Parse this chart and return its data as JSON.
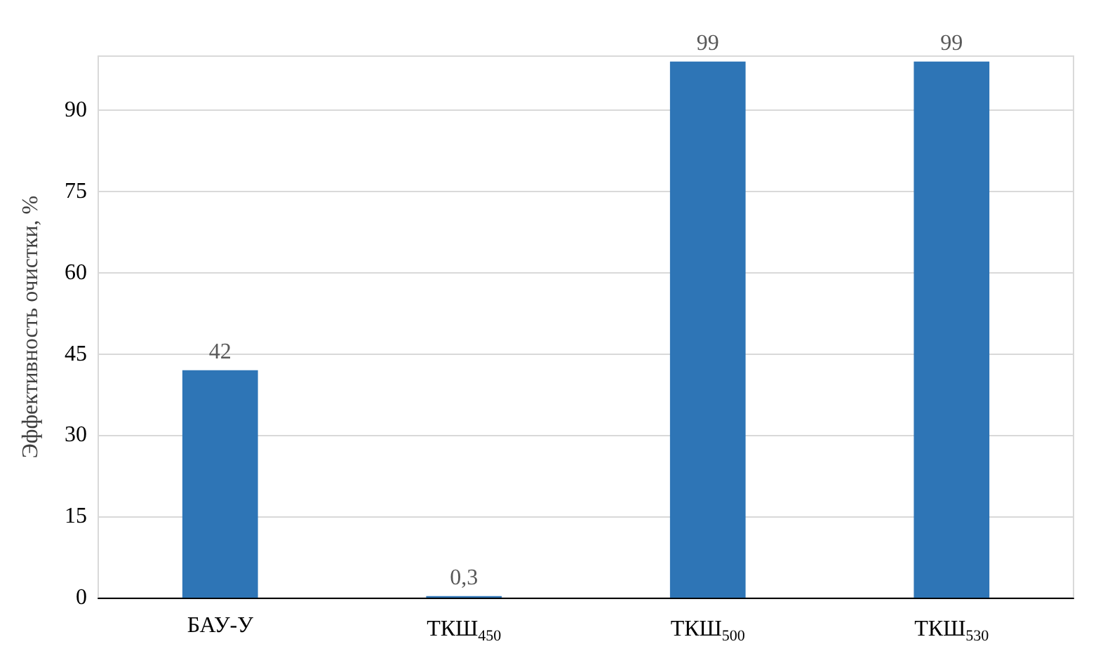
{
  "chart_data": {
    "type": "bar",
    "ylabel": "Эффективность очистки, %",
    "categories": [
      "БАУ-У",
      "ТКШ$_{450}$",
      "ТКШ$_{500}$",
      "ТКШ$_{530}$"
    ],
    "values": [
      42,
      0.3,
      99,
      99
    ],
    "value_labels": [
      "42",
      "0,3",
      "99",
      "99"
    ],
    "color": "#2e75b6",
    "ylim": [
      0,
      100
    ],
    "yticks": [
      0,
      15,
      30,
      45,
      60,
      75,
      90
    ],
    "grid": "y"
  }
}
